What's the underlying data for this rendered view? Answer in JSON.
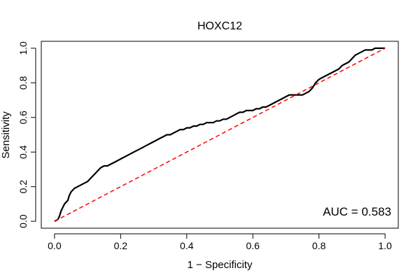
{
  "chart_data": {
    "type": "line",
    "title": "HOXC12",
    "xlabel": "1 − Specificity",
    "ylabel": "Sensitivity",
    "xlim": [
      -0.04,
      1.04
    ],
    "ylim": [
      -0.04,
      1.04
    ],
    "x_ticks": [
      {
        "value": 0.0,
        "label": "0.0"
      },
      {
        "value": 0.2,
        "label": "0.2"
      },
      {
        "value": 0.4,
        "label": "0.4"
      },
      {
        "value": 0.6,
        "label": "0.6"
      },
      {
        "value": 0.8,
        "label": "0.8"
      },
      {
        "value": 1.0,
        "label": "1.0"
      }
    ],
    "y_ticks": [
      {
        "value": 0.0,
        "label": "0.0"
      },
      {
        "value": 0.2,
        "label": "0.2"
      },
      {
        "value": 0.4,
        "label": "0.4"
      },
      {
        "value": 0.6,
        "label": "0.6"
      },
      {
        "value": 0.8,
        "label": "0.8"
      },
      {
        "value": 1.0,
        "label": "1.0"
      }
    ],
    "grid": false,
    "annotation": "AUC = 0.583",
    "series": [
      {
        "style": "solid",
        "color": "#000000",
        "x": [
          0.0,
          0.01,
          0.015,
          0.02,
          0.025,
          0.03,
          0.04,
          0.045,
          0.05,
          0.055,
          0.06,
          0.07,
          0.08,
          0.09,
          0.1,
          0.11,
          0.12,
          0.13,
          0.14,
          0.15,
          0.16,
          0.17,
          0.18,
          0.19,
          0.2,
          0.21,
          0.22,
          0.23,
          0.24,
          0.25,
          0.26,
          0.27,
          0.28,
          0.29,
          0.3,
          0.31,
          0.32,
          0.33,
          0.34,
          0.35,
          0.36,
          0.37,
          0.38,
          0.39,
          0.4,
          0.41,
          0.42,
          0.43,
          0.44,
          0.45,
          0.46,
          0.47,
          0.48,
          0.49,
          0.5,
          0.51,
          0.52,
          0.53,
          0.54,
          0.55,
          0.56,
          0.57,
          0.58,
          0.59,
          0.6,
          0.61,
          0.62,
          0.63,
          0.64,
          0.65,
          0.66,
          0.67,
          0.68,
          0.69,
          0.7,
          0.71,
          0.72,
          0.73,
          0.74,
          0.75,
          0.76,
          0.77,
          0.78,
          0.79,
          0.8,
          0.81,
          0.82,
          0.83,
          0.84,
          0.85,
          0.86,
          0.87,
          0.88,
          0.89,
          0.9,
          0.91,
          0.92,
          0.93,
          0.94,
          0.95,
          0.96,
          0.97,
          0.98,
          0.99,
          1.0
        ],
        "y": [
          0.0,
          0.01,
          0.03,
          0.06,
          0.08,
          0.1,
          0.12,
          0.15,
          0.17,
          0.18,
          0.19,
          0.2,
          0.21,
          0.22,
          0.23,
          0.25,
          0.27,
          0.29,
          0.31,
          0.32,
          0.32,
          0.33,
          0.34,
          0.35,
          0.36,
          0.37,
          0.38,
          0.39,
          0.4,
          0.41,
          0.42,
          0.43,
          0.44,
          0.45,
          0.46,
          0.47,
          0.48,
          0.49,
          0.5,
          0.5,
          0.51,
          0.52,
          0.53,
          0.53,
          0.54,
          0.54,
          0.55,
          0.55,
          0.56,
          0.56,
          0.57,
          0.57,
          0.57,
          0.58,
          0.58,
          0.59,
          0.59,
          0.6,
          0.61,
          0.62,
          0.63,
          0.63,
          0.64,
          0.64,
          0.64,
          0.65,
          0.65,
          0.66,
          0.66,
          0.67,
          0.68,
          0.69,
          0.7,
          0.71,
          0.72,
          0.73,
          0.73,
          0.73,
          0.73,
          0.73,
          0.74,
          0.75,
          0.77,
          0.8,
          0.82,
          0.83,
          0.84,
          0.85,
          0.86,
          0.87,
          0.88,
          0.9,
          0.91,
          0.92,
          0.94,
          0.96,
          0.97,
          0.98,
          0.99,
          0.99,
          0.99,
          1.0,
          1.0,
          1.0,
          1.0
        ]
      },
      {
        "style": "dashed",
        "color": "#ff0000",
        "x": [
          0.0,
          1.0
        ],
        "y": [
          0.0,
          1.0
        ]
      }
    ]
  }
}
